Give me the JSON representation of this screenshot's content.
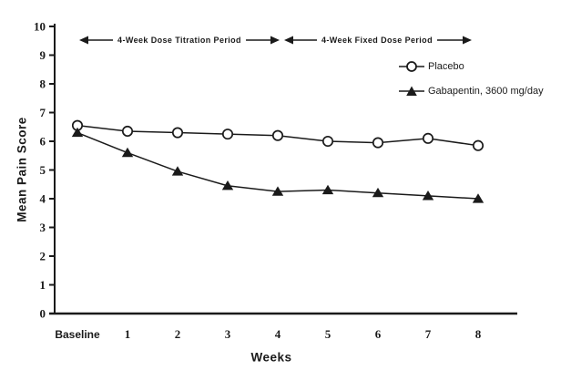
{
  "figure": {
    "background_color": "#ffffff",
    "ink_color": "#1a1a1a"
  },
  "chart_data": {
    "type": "line",
    "title": "",
    "xlabel": "Weeks",
    "ylabel": "Mean Pain Score",
    "x_categories": [
      "Baseline",
      "1",
      "2",
      "3",
      "4",
      "5",
      "6",
      "7",
      "8"
    ],
    "ylim": [
      0,
      10
    ],
    "yticks": [
      0,
      1,
      2,
      3,
      4,
      5,
      6,
      7,
      8,
      9,
      10
    ],
    "grid": false,
    "legend_position": "upper right",
    "series": [
      {
        "name": "Placebo",
        "marker": "open-circle",
        "color": "#1a1a1a",
        "values": [
          6.55,
          6.35,
          6.3,
          6.25,
          6.2,
          6.0,
          5.95,
          6.1,
          5.85
        ]
      },
      {
        "name": "Gabapentin, 3600 mg/day",
        "marker": "filled-triangle",
        "color": "#1a1a1a",
        "values": [
          6.3,
          5.6,
          4.95,
          4.45,
          4.25,
          4.3,
          4.2,
          4.1,
          4.0
        ]
      }
    ],
    "annotations": [
      {
        "label": "4-Week Dose Titration Period",
        "style": "double-arrow",
        "x_start": "Baseline",
        "x_end": "4"
      },
      {
        "label": "4-Week Fixed Dose Period",
        "style": "double-arrow",
        "x_start": "4",
        "x_end": "8"
      }
    ]
  }
}
